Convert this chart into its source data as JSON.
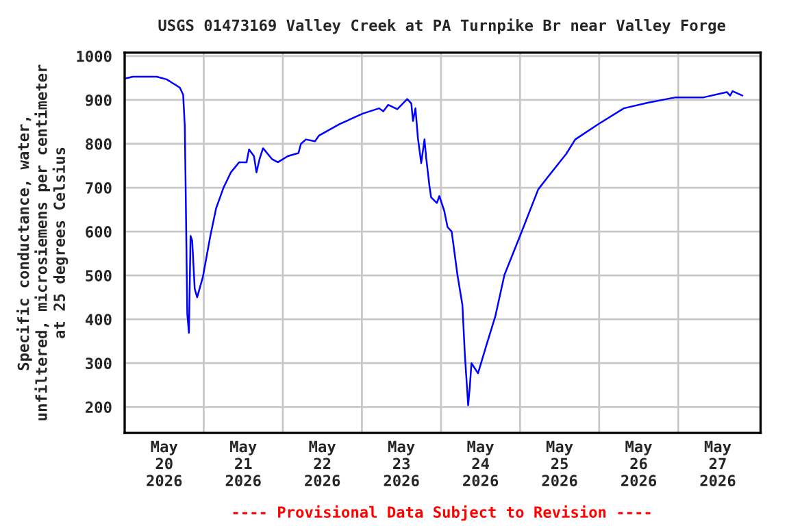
{
  "chart_data": {
    "type": "line",
    "title": "USGS 01473169 Valley Creek at PA Turnpike Br near Valley Forge",
    "ylabel": "Specific conductance, water,\nunfiltered, microsiemens per centimeter\nat 25 degrees Celsius",
    "annotations": [
      "---- Provisional Data Subject to Revision ----"
    ],
    "x": [
      "2026-05-20T00:15",
      "2026-05-20T02:30",
      "2026-05-20T09:45",
      "2026-05-20T12:45",
      "2026-05-20T16:45",
      "2026-05-20T17:45",
      "2026-05-20T18:15",
      "2026-05-20T18:30",
      "2026-05-20T19:00",
      "2026-05-20T19:30",
      "2026-05-20T20:00",
      "2026-05-20T20:30",
      "2026-05-20T21:15",
      "2026-05-20T22:00",
      "2026-05-20T23:45",
      "2026-05-21T02:00",
      "2026-05-21T03:45",
      "2026-05-21T06:00",
      "2026-05-21T08:15",
      "2026-05-21T10:45",
      "2026-05-21T13:00",
      "2026-05-21T13:45",
      "2026-05-21T15:15",
      "2026-05-21T16:00",
      "2026-05-21T17:00",
      "2026-05-21T18:00",
      "2026-05-21T20:45",
      "2026-05-21T22:30",
      "2026-05-22T01:30",
      "2026-05-22T04:45",
      "2026-05-22T05:30",
      "2026-05-22T07:00",
      "2026-05-22T09:45",
      "2026-05-22T11:00",
      "2026-05-22T17:15",
      "2026-05-23T00:15",
      "2026-05-23T05:15",
      "2026-05-23T06:30",
      "2026-05-23T08:00",
      "2026-05-23T10:45",
      "2026-05-23T13:45",
      "2026-05-23T15:00",
      "2026-05-23T15:30",
      "2026-05-23T16:15",
      "2026-05-23T17:00",
      "2026-05-23T18:00",
      "2026-05-23T19:00",
      "2026-05-23T19:30",
      "2026-05-23T20:30",
      "2026-05-23T21:00",
      "2026-05-23T22:45",
      "2026-05-23T23:30",
      "2026-05-24T01:00",
      "2026-05-24T02:00",
      "2026-05-24T03:15",
      "2026-05-24T05:00",
      "2026-05-24T06:30",
      "2026-05-24T07:15",
      "2026-05-24T08:15",
      "2026-05-24T08:45",
      "2026-05-24T09:15",
      "2026-05-24T11:15",
      "2026-05-24T13:45",
      "2026-05-24T16:30",
      "2026-05-24T19:15",
      "2026-05-25T00:15",
      "2026-05-25T05:30",
      "2026-05-25T08:30",
      "2026-05-25T14:00",
      "2026-05-25T16:45",
      "2026-05-25T23:45",
      "2026-05-26T07:30",
      "2026-05-26T15:00",
      "2026-05-26T23:15",
      "2026-05-27T07:45",
      "2026-05-27T14:45",
      "2026-05-27T15:45",
      "2026-05-27T16:30",
      "2026-05-27T19:30"
    ],
    "series": [
      {
        "color": "#0000ff",
        "values": [
          949,
          953,
          953,
          947,
          928,
          912,
          840,
          706,
          413,
          369,
          590,
          579,
          470,
          450,
          497,
          590,
          653,
          700,
          735,
          758,
          758,
          787,
          772,
          735,
          767,
          790,
          765,
          758,
          772,
          779,
          800,
          810,
          806,
          819,
          845,
          869,
          881,
          874,
          889,
          879,
          902,
          892,
          852,
          881,
          813,
          756,
          810,
          769,
          704,
          678,
          665,
          681,
          647,
          610,
          600,
          501,
          433,
          319,
          204,
          246,
          300,
          277,
          340,
          407,
          501,
          595,
          696,
          725,
          777,
          810,
          845,
          881,
          894,
          906,
          906,
          918,
          910,
          920,
          910
        ]
      }
    ],
    "xlim": [
      "2026-05-20T00:00",
      "2026-05-28T01:00"
    ],
    "xticks": [
      {
        "value": "2026-05-20T12:00",
        "label": "May\n20\n2026"
      },
      {
        "value": "2026-05-21T12:00",
        "label": "May\n21\n2026"
      },
      {
        "value": "2026-05-22T12:00",
        "label": "May\n22\n2026"
      },
      {
        "value": "2026-05-23T12:00",
        "label": "May\n23\n2026"
      },
      {
        "value": "2026-05-24T12:00",
        "label": "May\n24\n2026"
      },
      {
        "value": "2026-05-25T12:00",
        "label": "May\n25\n2026"
      },
      {
        "value": "2026-05-26T12:00",
        "label": "May\n26\n2026"
      },
      {
        "value": "2026-05-27T12:00",
        "label": "May\n27\n2026"
      },
      {
        "value": "2026-05-21",
        "label": null
      },
      {
        "value": "2026-05-22",
        "label": null
      },
      {
        "value": "2026-05-23",
        "label": null
      },
      {
        "value": "2026-05-24",
        "label": null
      },
      {
        "value": "2026-05-25",
        "label": null
      },
      {
        "value": "2026-05-26",
        "label": null
      },
      {
        "value": "2026-05-27",
        "label": null
      }
    ],
    "ylim": [
      141,
      1008
    ],
    "yticks": [
      200,
      300,
      400,
      500,
      600,
      700,
      800,
      900,
      1000
    ],
    "grid": true,
    "legend": false,
    "marker": "none",
    "line_style": "solid"
  }
}
